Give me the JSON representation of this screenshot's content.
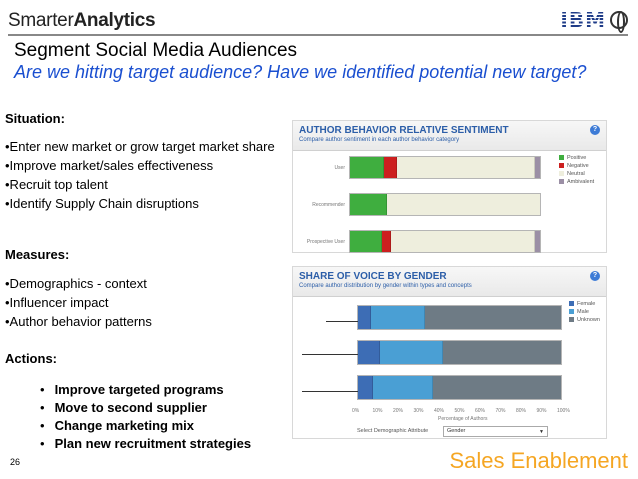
{
  "header": {
    "logo_light": "Smarter",
    "logo_bold": "Analytics",
    "ibm_text": "IBM"
  },
  "title": "Segment Social Media Audiences",
  "subtitle": "Are we hitting target audience?  Have we identified potential new target?",
  "situation": {
    "label": "Situation:",
    "items": [
      "•Enter new market or grow target market share",
      "•Improve market/sales effectiveness",
      "•Recruit top talent",
      "•Identify Supply Chain disruptions"
    ]
  },
  "measures": {
    "label": "Measures:",
    "items": [
      "•Demographics - context",
      "•Influencer impact",
      "•Author behavior  patterns"
    ]
  },
  "actions": {
    "label": "Actions:",
    "items": [
      "Improve targeted programs",
      "Move to second supplier",
      "Change marketing mix",
      "Plan new recruitment strategies"
    ]
  },
  "footer": {
    "page_number": "26",
    "sales": "Sales Enablement"
  },
  "chart_data": [
    {
      "type": "bar",
      "stacked": true,
      "orientation": "horizontal",
      "title": "AUTHOR BEHAVIOR RELATIVE SENTIMENT",
      "subtitle": "Compare author sentiment in each author behavior category",
      "categories": [
        "User",
        "Recommender",
        "Prospective User"
      ],
      "series": [
        {
          "name": "Positive",
          "color": "#3fae3f",
          "values": [
            18,
            20,
            17
          ]
        },
        {
          "name": "Negative",
          "color": "#cc1f1f",
          "values": [
            7,
            0,
            5
          ]
        },
        {
          "name": "Neutral",
          "color": "#eeeedd",
          "values": [
            72,
            80,
            75
          ]
        },
        {
          "name": "Ambivalent",
          "color": "#9b8fa5",
          "values": [
            3,
            0,
            3
          ]
        }
      ],
      "xlim": [
        0,
        100
      ],
      "legend": "right"
    },
    {
      "type": "bar",
      "stacked": true,
      "orientation": "horizontal",
      "title": "SHARE OF VOICE BY GENDER",
      "subtitle": "Compare author distribution by gender within types and concepts",
      "categories": [
        "",
        "",
        ""
      ],
      "series": [
        {
          "name": "Female",
          "color": "#3d6db5",
          "values": [
            7,
            11,
            8
          ]
        },
        {
          "name": "Male",
          "color": "#4a9fd4",
          "values": [
            26,
            31,
            29
          ]
        },
        {
          "name": "Unknown",
          "color": "#6e7b85",
          "values": [
            67,
            58,
            63
          ]
        }
      ],
      "xlabel": "Percentage of Authors",
      "x_ticks": [
        "0%",
        "10%",
        "20%",
        "30%",
        "40%",
        "50%",
        "60%",
        "70%",
        "80%",
        "90%",
        "100%"
      ],
      "xlim": [
        0,
        100
      ],
      "legend": "right",
      "select_label": "Select Demographic Attribute",
      "select_value": "Gender"
    }
  ]
}
